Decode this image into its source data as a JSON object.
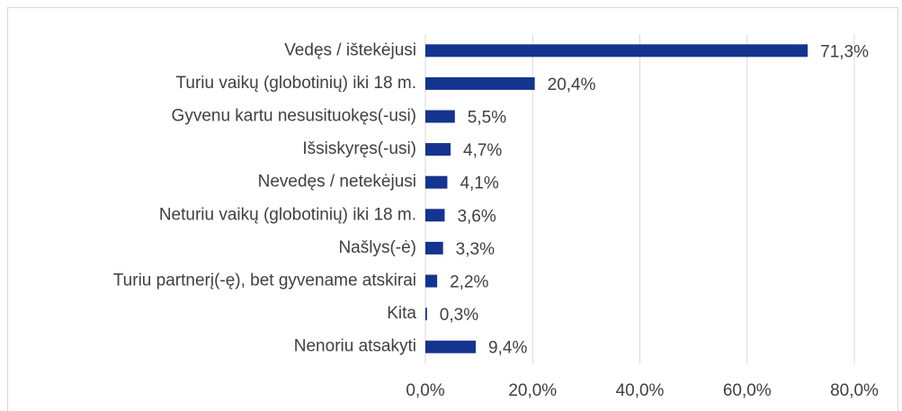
{
  "chart_data": {
    "type": "hbar",
    "categories": [
      "Vedęs / ištekėjusi",
      "Turiu vaikų (globotinių) iki 18 m.",
      "Gyvenu kartu nesusituokęs(-usi)",
      "Išsiskyręs(-usi)",
      "Nevedęs / netekėjusi",
      "Neturiu vaikų (globotinių) iki 18 m.",
      "Našlys(-ė)",
      "Turiu partnerį(-ę), bet gyvename atskirai",
      "Kita",
      "Nenoriu atsakyti"
    ],
    "values": [
      71.3,
      20.4,
      5.5,
      4.7,
      4.1,
      3.6,
      3.3,
      2.2,
      0.3,
      9.4
    ],
    "value_labels": [
      "71,3%",
      "20,4%",
      "5,5%",
      "4,7%",
      "4,1%",
      "3,6%",
      "3,3%",
      "2,2%",
      "0,3%",
      "9,4%"
    ],
    "color": "#14348f",
    "xlim": [
      0,
      80
    ],
    "xticks": [
      {
        "value": 0,
        "label": "0,0%"
      },
      {
        "value": 20,
        "label": "20,0%"
      },
      {
        "value": 40,
        "label": "40,0%"
      },
      {
        "value": 60,
        "label": "60,0%"
      },
      {
        "value": 80,
        "label": "80,0%"
      }
    ],
    "grid": true
  }
}
